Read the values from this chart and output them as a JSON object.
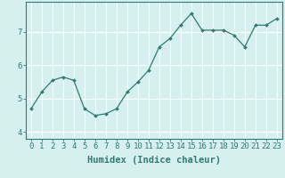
{
  "x": [
    0,
    1,
    2,
    3,
    4,
    5,
    6,
    7,
    8,
    9,
    10,
    11,
    12,
    13,
    14,
    15,
    16,
    17,
    18,
    19,
    20,
    21,
    22,
    23
  ],
  "y": [
    4.7,
    5.2,
    5.55,
    5.65,
    5.55,
    4.7,
    4.5,
    4.55,
    4.7,
    5.2,
    5.5,
    5.85,
    6.55,
    6.8,
    7.2,
    7.55,
    7.05,
    7.05,
    7.05,
    6.9,
    6.55,
    7.2,
    7.2,
    7.4
  ],
  "line_color": "#2e7d6e",
  "marker": "D",
  "marker_size": 2.0,
  "bg_color": "#d6f0f0",
  "grid_color": "#ffffff",
  "axis_color": "#2e7d6e",
  "xlabel": "Humidex (Indice chaleur)",
  "ylabel": "",
  "xlim": [
    -0.5,
    23.5
  ],
  "ylim": [
    3.8,
    7.9
  ],
  "yticks": [
    4,
    5,
    6,
    7
  ],
  "xticks": [
    0,
    1,
    2,
    3,
    4,
    5,
    6,
    7,
    8,
    9,
    10,
    11,
    12,
    13,
    14,
    15,
    16,
    17,
    18,
    19,
    20,
    21,
    22,
    23
  ],
  "xlabel_fontsize": 7.5,
  "tick_fontsize": 6.5
}
